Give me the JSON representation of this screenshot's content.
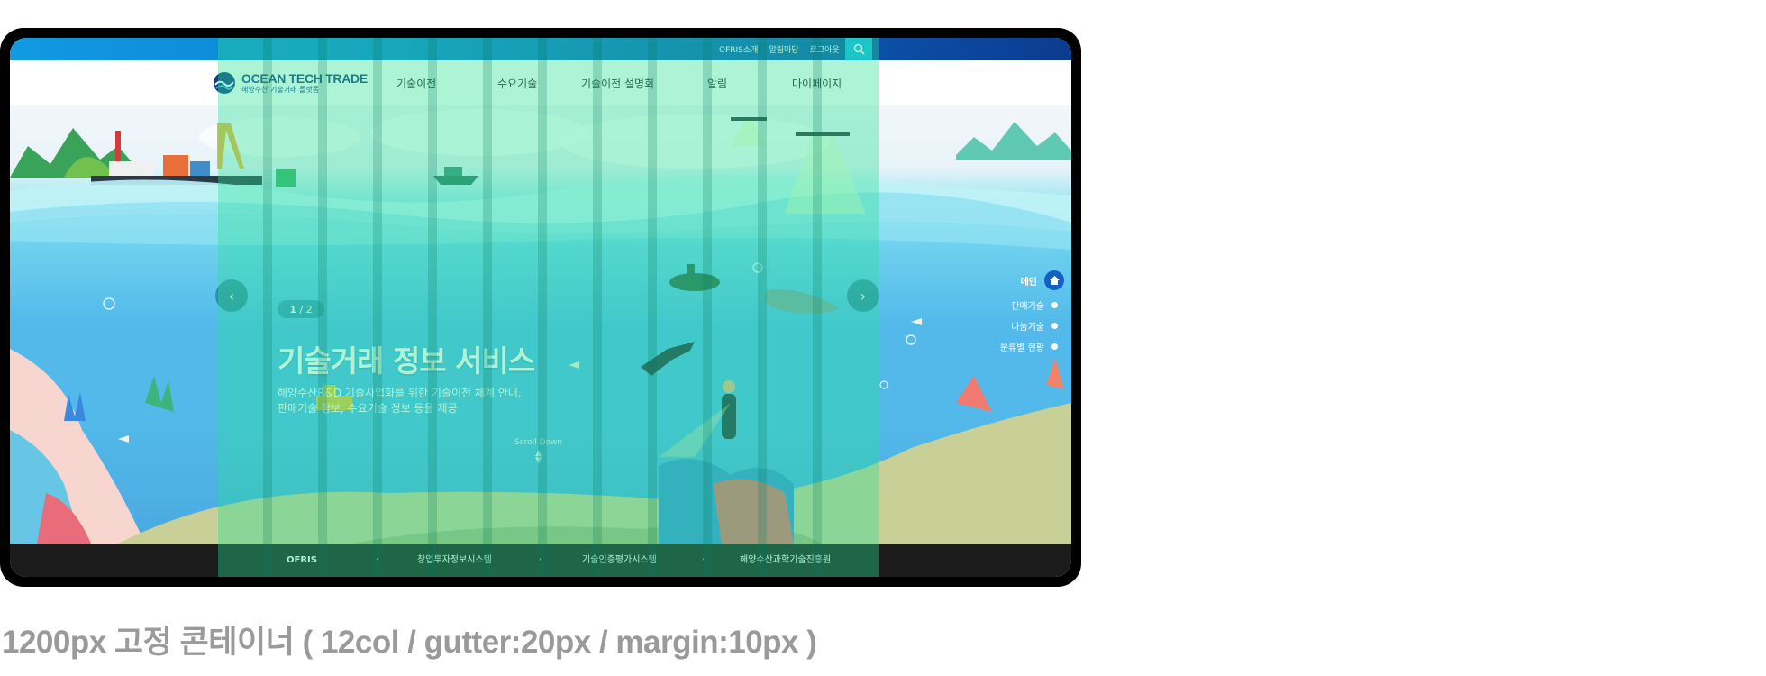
{
  "topbar": {
    "links": [
      "OFRIS소개",
      "알림마당",
      "로그아웃"
    ],
    "search_icon": "search-icon"
  },
  "logo": {
    "main": "OCEAN TECH TRADE",
    "sub": "해양수산 기술거래 플랫폼"
  },
  "nav": {
    "items": [
      "기술이전",
      "수요기술",
      "기술이전 설명회",
      "알림",
      "마이페이지"
    ]
  },
  "hero": {
    "page_current": "1",
    "page_total": "/ 2",
    "title": "기술거래 정보 서비스",
    "description": "해양수산R&D 기술사업화를 위한 기술이전 체계 안내,\n판매기술 정보, 수요기술 정보 등을 제공",
    "scroll_label": "Scroll Down",
    "prev_icon": "chevron-left-icon",
    "next_icon": "chevron-right-icon"
  },
  "side_nav": {
    "items": [
      "메인",
      "판매기술",
      "나눔기술",
      "분류별 현황"
    ],
    "home_icon": "home-icon"
  },
  "footer": {
    "links": [
      "OFRIS",
      "창업투자정보시스템",
      "기술인증평가시스템",
      "해양수산과학기술진흥원"
    ]
  },
  "caption": "1200px 고정 콘테이너  ( 12col / gutter:20px / margin:10px )",
  "colors": {
    "brand": "#123f86",
    "topbar": "#0d7fd0",
    "grid_overlay": "#28e196",
    "footer": "#1b1b1b"
  }
}
